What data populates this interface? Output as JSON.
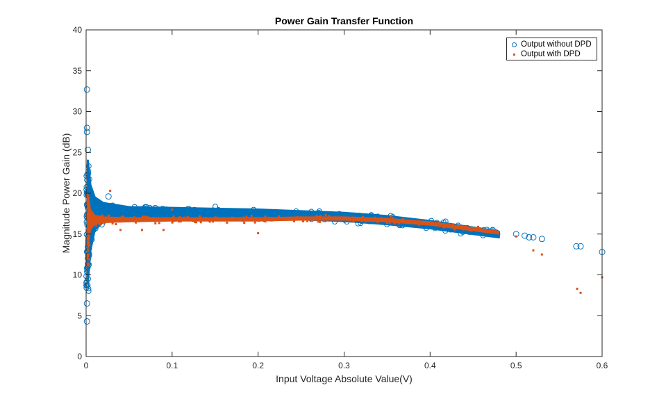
{
  "chart_data": {
    "type": "scatter",
    "title": "Power Gain Transfer Function",
    "xlabel": "Input Voltage Absolute Value(V)",
    "ylabel": "Magnitude Power Gain (dB)",
    "xlim": [
      0,
      0.6
    ],
    "ylim": [
      0,
      40
    ],
    "xticks": [
      0,
      0.1,
      0.2,
      0.3,
      0.4,
      0.5,
      0.6
    ],
    "xtick_labels": [
      "0",
      "0.1",
      "0.2",
      "0.3",
      "0.4",
      "0.5",
      "0.6"
    ],
    "yticks": [
      0,
      5,
      10,
      15,
      20,
      25,
      30,
      35,
      40
    ],
    "ytick_labels": [
      "0",
      "5",
      "10",
      "15",
      "20",
      "25",
      "30",
      "35",
      "40"
    ],
    "grid": false,
    "legend_position": "northeast",
    "colors": {
      "without_dpd": "#0072BD",
      "with_dpd": "#D95319"
    },
    "series": [
      {
        "name": "Output without DPD",
        "marker": "circle",
        "color": "#0072BD",
        "band_x": [
          0.002,
          0.005,
          0.01,
          0.02,
          0.05,
          0.1,
          0.15,
          0.2,
          0.25,
          0.3,
          0.35,
          0.4,
          0.45,
          0.48
        ],
        "band_upper": [
          24,
          21,
          19.5,
          18.8,
          18.3,
          18.2,
          18.1,
          18.0,
          17.8,
          17.6,
          17.2,
          16.6,
          15.8,
          15.3
        ],
        "band_lower": [
          9,
          13,
          15.5,
          16.5,
          16.9,
          17.0,
          17.0,
          16.9,
          16.8,
          16.6,
          16.2,
          15.7,
          15.0,
          14.6
        ],
        "outliers": [
          {
            "x": 0.001,
            "y": 32.7
          },
          {
            "x": 0.001,
            "y": 28.0
          },
          {
            "x": 0.001,
            "y": 27.5
          },
          {
            "x": 0.002,
            "y": 25.3
          },
          {
            "x": 0.001,
            "y": 6.5
          },
          {
            "x": 0.001,
            "y": 4.3
          },
          {
            "x": 0.026,
            "y": 19.6
          },
          {
            "x": 0.5,
            "y": 15.0
          },
          {
            "x": 0.51,
            "y": 14.8
          },
          {
            "x": 0.515,
            "y": 14.6
          },
          {
            "x": 0.52,
            "y": 14.6
          },
          {
            "x": 0.53,
            "y": 14.4
          },
          {
            "x": 0.57,
            "y": 13.5
          },
          {
            "x": 0.575,
            "y": 13.5
          },
          {
            "x": 0.6,
            "y": 12.8
          }
        ]
      },
      {
        "name": "Output with DPD",
        "marker": "square",
        "color": "#D95319",
        "band_x": [
          0.002,
          0.005,
          0.01,
          0.02,
          0.05,
          0.1,
          0.15,
          0.2,
          0.25,
          0.3,
          0.35,
          0.4,
          0.45,
          0.48
        ],
        "band_upper": [
          20,
          18,
          17.3,
          17.1,
          17.0,
          17.0,
          17.0,
          17.0,
          17.1,
          17.1,
          16.9,
          16.5,
          15.8,
          15.3
        ],
        "band_lower": [
          13,
          15.5,
          16.2,
          16.4,
          16.5,
          16.6,
          16.6,
          16.6,
          16.7,
          16.7,
          16.5,
          16.1,
          15.4,
          15.0
        ],
        "outliers": [
          {
            "x": 0.028,
            "y": 20.3
          },
          {
            "x": 0.1,
            "y": 18.0
          },
          {
            "x": 0.065,
            "y": 15.5
          },
          {
            "x": 0.09,
            "y": 15.5
          },
          {
            "x": 0.2,
            "y": 15.1
          },
          {
            "x": 0.04,
            "y": 15.5
          },
          {
            "x": 0.5,
            "y": 14.7
          },
          {
            "x": 0.52,
            "y": 13.0
          },
          {
            "x": 0.53,
            "y": 12.5
          },
          {
            "x": 0.571,
            "y": 8.3
          },
          {
            "x": 0.575,
            "y": 7.8
          },
          {
            "x": 0.6,
            "y": 9.7
          }
        ]
      }
    ]
  },
  "legend": {
    "items": [
      {
        "label": "Output without DPD"
      },
      {
        "label": "Output with DPD"
      }
    ]
  }
}
